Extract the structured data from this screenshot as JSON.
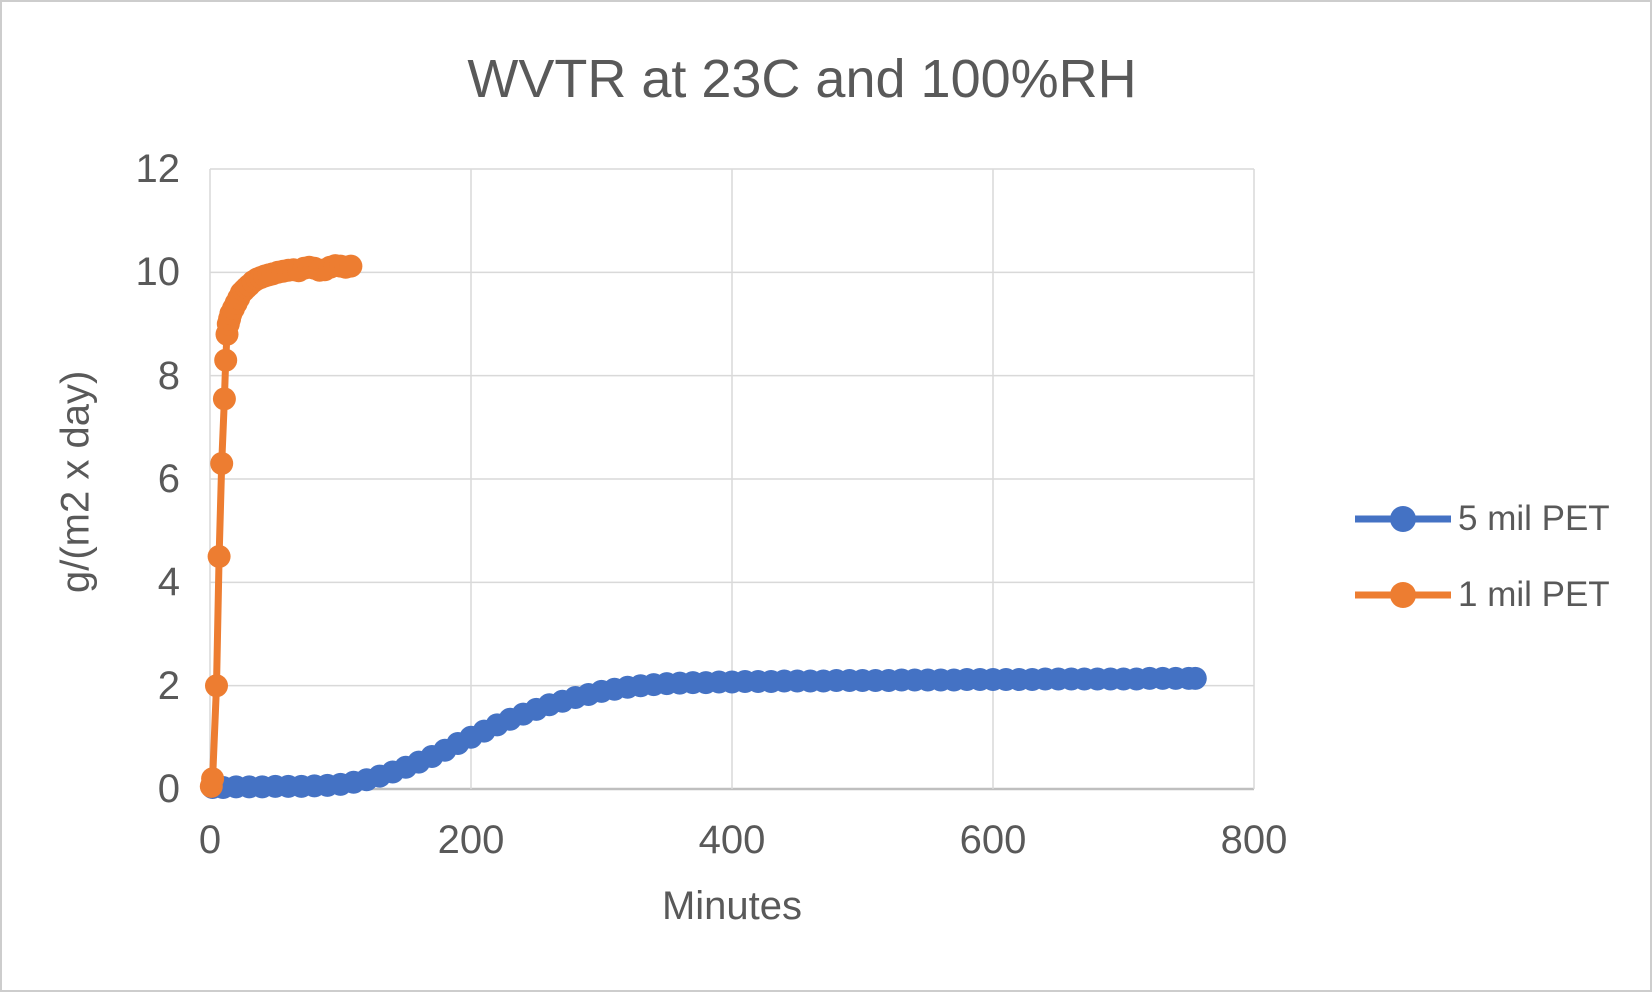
{
  "window": {
    "background": "#FFFFFF",
    "frame_border_color": "#CDCDCD"
  },
  "colors": {
    "series_blue": "#4472C4",
    "series_orange": "#ED7D31",
    "gridline": "#D9D9D9",
    "axis_line": "#BFBFBF",
    "text": "#595959"
  },
  "chart_data": {
    "type": "line",
    "title": "WVTR at 23C and 100%RH",
    "xlabel": "Minutes",
    "ylabel": "g/(m2 x day)",
    "xlim": [
      0,
      800
    ],
    "ylim": [
      0,
      12
    ],
    "x_ticks": [
      0,
      200,
      400,
      600,
      800
    ],
    "y_ticks": [
      0,
      2,
      4,
      6,
      8,
      10,
      12
    ],
    "grid": true,
    "legend_position": "right",
    "series": [
      {
        "name": "5 mil PET",
        "color": "#4472C4",
        "marker": "circle",
        "points": [
          [
            2,
            0.03
          ],
          [
            10,
            0.03
          ],
          [
            20,
            0.04
          ],
          [
            30,
            0.04
          ],
          [
            40,
            0.04
          ],
          [
            50,
            0.05
          ],
          [
            60,
            0.05
          ],
          [
            70,
            0.05
          ],
          [
            80,
            0.06
          ],
          [
            90,
            0.07
          ],
          [
            100,
            0.09
          ],
          [
            110,
            0.13
          ],
          [
            120,
            0.18
          ],
          [
            130,
            0.25
          ],
          [
            140,
            0.33
          ],
          [
            150,
            0.42
          ],
          [
            160,
            0.52
          ],
          [
            170,
            0.63
          ],
          [
            180,
            0.75
          ],
          [
            190,
            0.88
          ],
          [
            200,
            1.0
          ],
          [
            210,
            1.12
          ],
          [
            220,
            1.24
          ],
          [
            230,
            1.35
          ],
          [
            240,
            1.45
          ],
          [
            250,
            1.54
          ],
          [
            260,
            1.63
          ],
          [
            270,
            1.7
          ],
          [
            280,
            1.77
          ],
          [
            290,
            1.83
          ],
          [
            300,
            1.89
          ],
          [
            310,
            1.93
          ],
          [
            320,
            1.97
          ],
          [
            330,
            2.0
          ],
          [
            340,
            2.02
          ],
          [
            350,
            2.04
          ],
          [
            360,
            2.05
          ],
          [
            370,
            2.06
          ],
          [
            380,
            2.06
          ],
          [
            390,
            2.07
          ],
          [
            400,
            2.07
          ],
          [
            410,
            2.08
          ],
          [
            420,
            2.08
          ],
          [
            430,
            2.08
          ],
          [
            440,
            2.09
          ],
          [
            450,
            2.09
          ],
          [
            460,
            2.09
          ],
          [
            470,
            2.09
          ],
          [
            480,
            2.1
          ],
          [
            490,
            2.1
          ],
          [
            500,
            2.1
          ],
          [
            510,
            2.1
          ],
          [
            520,
            2.1
          ],
          [
            530,
            2.11
          ],
          [
            540,
            2.11
          ],
          [
            550,
            2.11
          ],
          [
            560,
            2.11
          ],
          [
            570,
            2.11
          ],
          [
            580,
            2.12
          ],
          [
            590,
            2.12
          ],
          [
            600,
            2.12
          ],
          [
            610,
            2.12
          ],
          [
            620,
            2.12
          ],
          [
            630,
            2.12
          ],
          [
            640,
            2.13
          ],
          [
            650,
            2.13
          ],
          [
            660,
            2.13
          ],
          [
            670,
            2.13
          ],
          [
            680,
            2.13
          ],
          [
            690,
            2.13
          ],
          [
            700,
            2.13
          ],
          [
            710,
            2.13
          ],
          [
            720,
            2.14
          ],
          [
            730,
            2.14
          ],
          [
            740,
            2.14
          ],
          [
            750,
            2.14
          ],
          [
            755,
            2.14
          ]
        ]
      },
      {
        "name": "1 mil PET",
        "color": "#ED7D31",
        "marker": "circle",
        "points": [
          [
            1,
            0.05
          ],
          [
            2,
            0.2
          ],
          [
            5,
            2.0
          ],
          [
            7,
            4.5
          ],
          [
            9,
            6.3
          ],
          [
            11,
            7.55
          ],
          [
            12,
            8.3
          ],
          [
            13,
            8.8
          ],
          [
            14,
            9.0
          ],
          [
            15,
            9.1
          ],
          [
            16,
            9.2
          ],
          [
            18,
            9.3
          ],
          [
            20,
            9.4
          ],
          [
            22,
            9.5
          ],
          [
            24,
            9.6
          ],
          [
            26,
            9.65
          ],
          [
            28,
            9.7
          ],
          [
            30,
            9.75
          ],
          [
            33,
            9.82
          ],
          [
            36,
            9.87
          ],
          [
            39,
            9.9
          ],
          [
            42,
            9.93
          ],
          [
            45,
            9.95
          ],
          [
            48,
            9.97
          ],
          [
            52,
            10.0
          ],
          [
            56,
            10.02
          ],
          [
            60,
            10.04
          ],
          [
            64,
            10.05
          ],
          [
            68,
            10.03
          ],
          [
            72,
            10.08
          ],
          [
            76,
            10.1
          ],
          [
            80,
            10.08
          ],
          [
            84,
            10.04
          ],
          [
            88,
            10.05
          ],
          [
            92,
            10.1
          ],
          [
            96,
            10.13
          ],
          [
            100,
            10.12
          ],
          [
            104,
            10.1
          ],
          [
            108,
            10.12
          ]
        ]
      }
    ]
  }
}
